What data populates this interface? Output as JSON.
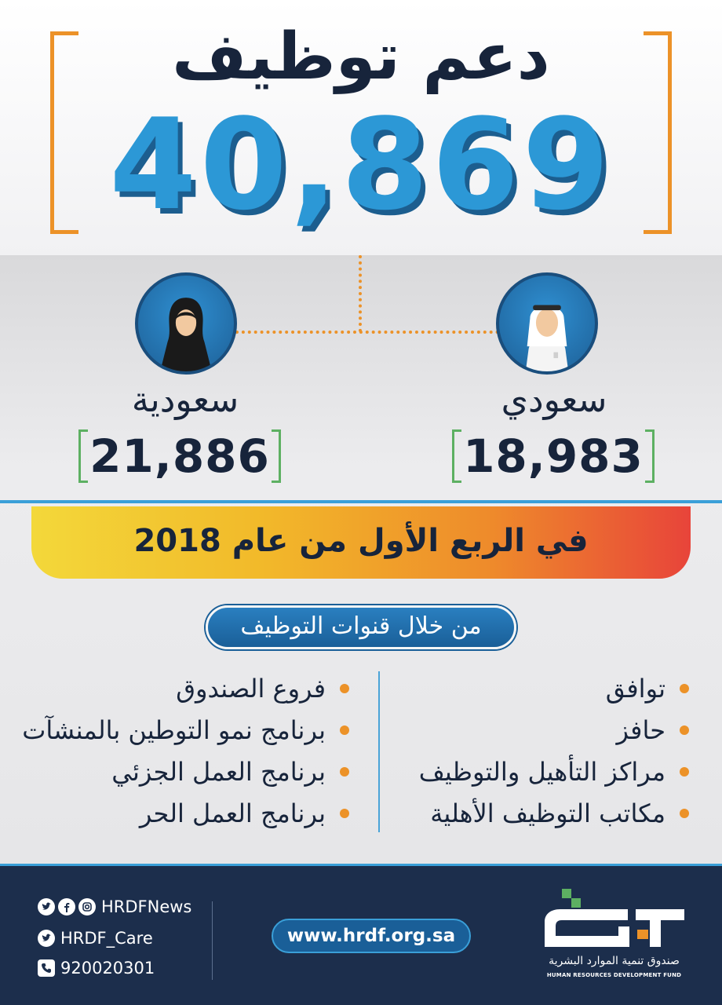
{
  "header": {
    "title": "دعم توظيف",
    "total": "40,869"
  },
  "breakdown": {
    "female": {
      "label": "سعودية",
      "count": "21,886"
    },
    "male": {
      "label": "سعودي",
      "count": "18,983"
    }
  },
  "period": "في الربع الأول من عام 2018",
  "channels": {
    "heading": "من خلال قنوات التوظيف",
    "right_column": [
      "توافق",
      "حافز",
      "مراكز التأهيل والتوظيف",
      "مكاتب التوظيف الأهلية"
    ],
    "left_column": [
      "فروع الصندوق",
      "برنامج نمو التوطين بالمنشآت",
      "برنامج العمل الجزئي",
      "برنامج العمل الحر"
    ]
  },
  "footer": {
    "social_news": "HRDFNews",
    "social_care": "HRDF_Care",
    "phone": "920020301",
    "website": "www.hrdf.org.sa",
    "logo_ar": "صندوق تنمية الموارد البشرية",
    "logo_en": "HUMAN RESOURCES DEVELOPMENT FUND"
  },
  "colors": {
    "accent_orange": "#ec9228",
    "number_blue": "#2c98d6",
    "navy": "#1c2e4c",
    "green": "#5db062"
  },
  "icons": [
    "twitter-icon",
    "facebook-icon",
    "instagram-icon",
    "phone-icon",
    "female-avatar-icon",
    "male-avatar-icon"
  ]
}
